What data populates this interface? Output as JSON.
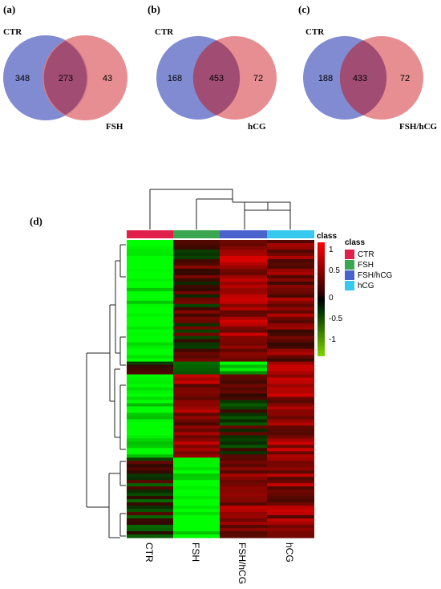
{
  "panels": {
    "a": "(a)",
    "b": "(b)",
    "c": "(c)",
    "d": "(d)"
  },
  "venns": [
    {
      "left_label": "CTR",
      "right_label": "FSH",
      "left_only": "348",
      "overlap": "273",
      "right_only": "43"
    },
    {
      "left_label": "CTR",
      "right_label": "hCG",
      "left_only": "168",
      "overlap": "453",
      "right_only": "72"
    },
    {
      "left_label": "CTR",
      "right_label": "FSH/hCG",
      "left_only": "188",
      "overlap": "433",
      "right_only": "72"
    }
  ],
  "colors": {
    "venn_left": "#6b77c9",
    "venn_right": "#e27a7e",
    "venn_overlap": "#9b4870",
    "class_CTR": "#e0204a",
    "class_FSH": "#3aa64f",
    "class_FSH_hCG": "#4a62cc",
    "class_hCG": "#36c8ee"
  },
  "heatmap": {
    "class_title": "class",
    "scale_title": "class",
    "scale_ticks": [
      "1",
      "0.5",
      "0",
      "-0.5",
      "-1"
    ],
    "legend": [
      {
        "label": "CTR",
        "color": "#e0204a"
      },
      {
        "label": "FSH",
        "color": "#3aa64f"
      },
      {
        "label": "FSH/hCG",
        "color": "#4a62cc"
      },
      {
        "label": "hCG",
        "color": "#36c8ee"
      }
    ],
    "columns": [
      "CTR",
      "FSH",
      "FSH/hCG",
      "hCG"
    ]
  }
}
